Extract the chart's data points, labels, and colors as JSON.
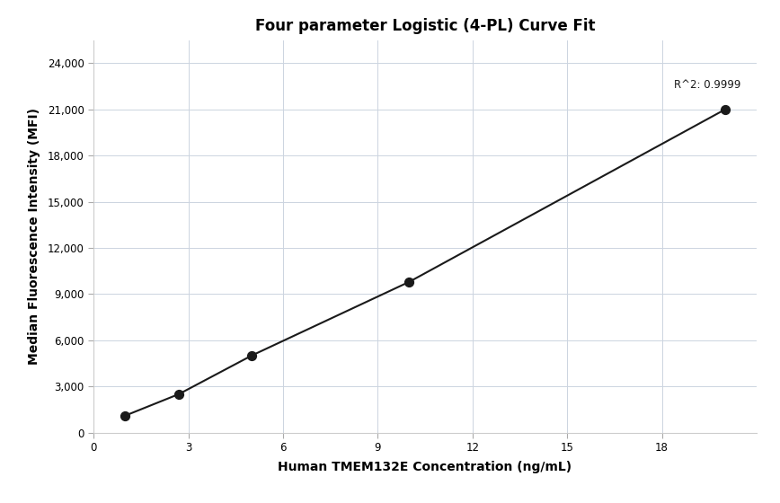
{
  "title": "Four parameter Logistic (4-PL) Curve Fit",
  "xlabel": "Human TMEM132E Concentration (ng/mL)",
  "ylabel": "Median Fluorescence Intensity (MFI)",
  "x_data": [
    1.0,
    2.7,
    5.0,
    10.0,
    20.0
  ],
  "y_data": [
    1100,
    2500,
    5000,
    9800,
    21000
  ],
  "xlim": [
    0,
    21
  ],
  "ylim": [
    0,
    25500
  ],
  "xticks": [
    0,
    3,
    6,
    9,
    12,
    15,
    18
  ],
  "yticks": [
    0,
    3000,
    6000,
    9000,
    12000,
    15000,
    18000,
    21000,
    24000
  ],
  "r_squared": "R^2: 0.9999",
  "r2_x": 20.5,
  "r2_y": 22200,
  "line_color": "#1a1a1a",
  "dot_color": "#1a1a1a",
  "dot_size": 50,
  "background_color": "#ffffff",
  "grid_color": "#ccd4e0",
  "title_fontsize": 12,
  "label_fontsize": 10,
  "tick_fontsize": 8.5,
  "annotation_fontsize": 8.5
}
